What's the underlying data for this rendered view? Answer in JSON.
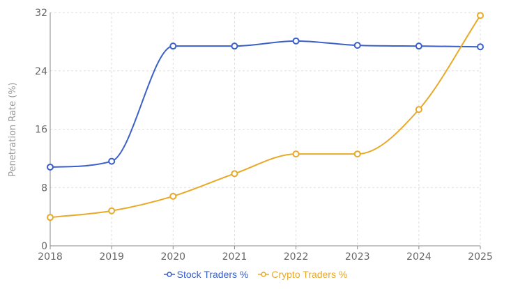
{
  "chart_data": {
    "type": "line",
    "categories": [
      "2018",
      "2019",
      "2020",
      "2021",
      "2022",
      "2023",
      "2024",
      "2025"
    ],
    "series": [
      {
        "name": "Stock Traders %",
        "color": "#3a5fc8",
        "values": [
          10.8,
          11.6,
          27.4,
          27.4,
          28.1,
          27.5,
          27.4,
          27.3
        ]
      },
      {
        "name": "Crypto Traders %",
        "color": "#e8a927",
        "values": [
          3.9,
          4.8,
          6.8,
          9.9,
          12.6,
          12.6,
          18.7,
          31.6
        ]
      }
    ],
    "title": "",
    "xlabel": "",
    "ylabel": "Penetration Rate (%)",
    "ylim": [
      0,
      32
    ],
    "yticks": [
      "0",
      "8",
      "16",
      "24",
      "32"
    ],
    "grid": true,
    "legend": "bottom",
    "curve": "smooth",
    "markers": "hollow-circle"
  }
}
